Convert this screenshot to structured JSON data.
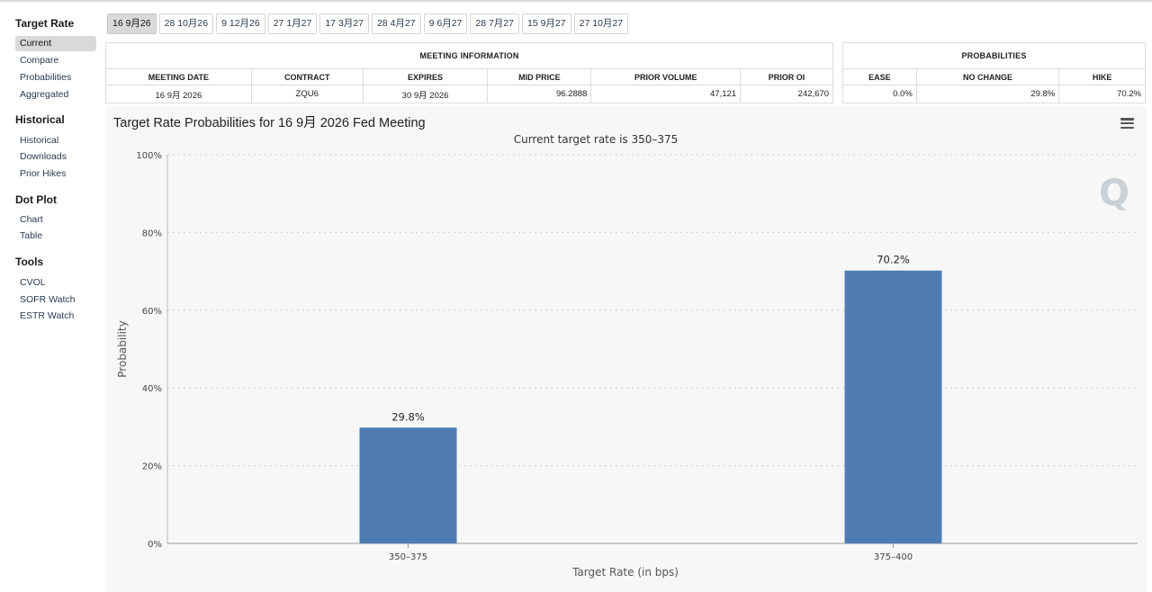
{
  "sidebar": {
    "sections": [
      {
        "title": "Target Rate",
        "items": [
          "Current",
          "Compare",
          "Probabilities",
          "Aggregated"
        ]
      },
      {
        "title": "Historical",
        "items": [
          "Historical",
          "Downloads",
          "Prior Hikes"
        ]
      },
      {
        "title": "Dot Plot",
        "items": [
          "Chart",
          "Table"
        ]
      },
      {
        "title": "Tools",
        "items": [
          "CVOL",
          "SOFR Watch",
          "ESTR Watch"
        ]
      }
    ],
    "active_item": "Current"
  },
  "tabs": [
    "16 9月26",
    "28 10月26",
    "9 12月26",
    "27 1月27",
    "17 3月27",
    "28 4月27",
    "9 6月27",
    "28 7月27",
    "15 9月27",
    "27 10月27"
  ],
  "meeting_info": {
    "title": "MEETING INFORMATION",
    "headers": [
      "MEETING DATE",
      "CONTRACT",
      "EXPIRES",
      "MID PRICE",
      "PRIOR VOLUME",
      "PRIOR OI"
    ],
    "row": [
      "16 9月 2026",
      "ZQU6",
      "30 9月 2026",
      "96.2888",
      "47,121",
      "242,670"
    ]
  },
  "probabilities_table": {
    "title": "PROBABILITIES",
    "headers": [
      "EASE",
      "NO CHANGE",
      "HIKE"
    ],
    "row": [
      "0.0%",
      "29.8%",
      "70.2%"
    ]
  },
  "colors": {
    "bar": "#4f7db3",
    "tab_active": "#d9d9d9",
    "panel": "#f7f7f7"
  },
  "chart_data": {
    "type": "bar",
    "title": "Target Rate Probabilities for 16 9月 2026 Fed Meeting",
    "subtitle": "Current target rate is 350–375",
    "xlabel": "Target Rate (in bps)",
    "ylabel": "Probability",
    "categories": [
      "350–375",
      "375–400"
    ],
    "values": [
      29.8,
      70.2
    ],
    "data_labels": [
      "29.8%",
      "70.2%"
    ],
    "ylim": [
      0,
      100
    ],
    "yticks": [
      0,
      20,
      40,
      60,
      80,
      100
    ],
    "ytick_labels": [
      "0%",
      "20%",
      "40%",
      "60%",
      "80%",
      "100%"
    ],
    "grid": true
  }
}
